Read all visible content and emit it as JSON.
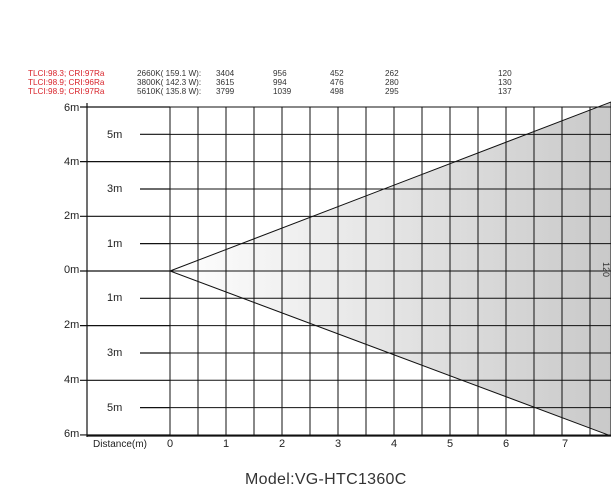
{
  "header_rows": [
    {
      "index": "TLCI:98.3; CRI:97Ra",
      "ct_power": "2660K( 159.1 W):",
      "values": [
        "3404",
        "956",
        "452",
        "262",
        "120"
      ]
    },
    {
      "index": "TLCI:98.9; CRI:96Ra",
      "ct_power": "3800K( 142.3 W):",
      "values": [
        "3615",
        "994",
        "476",
        "280",
        "130"
      ]
    },
    {
      "index": "TLCI:98.9; CRI:97Ra",
      "ct_power": "5610K( 135.8 W):",
      "values": [
        "3799",
        "1039",
        "498",
        "295",
        "137"
      ]
    }
  ],
  "y_axis_labels": [
    "6m",
    "4m",
    "2m",
    "0m",
    "2m",
    "4m",
    "6m"
  ],
  "mid_labels": [
    "5m",
    "3m",
    "1m",
    "1m",
    "3m",
    "5m"
  ],
  "x_axis": {
    "title": "Distance(m)",
    "ticks": [
      "0",
      "1",
      "2",
      "3",
      "4",
      "5",
      "6",
      "7"
    ]
  },
  "beam_label": "120",
  "model": "Model:VG-HTC1360C",
  "colors": {
    "index_text": "#d8232a",
    "grid": "#111111",
    "beam_fill_dark": "#c9c9c9",
    "beam_fill_light": "#ffffff"
  }
}
